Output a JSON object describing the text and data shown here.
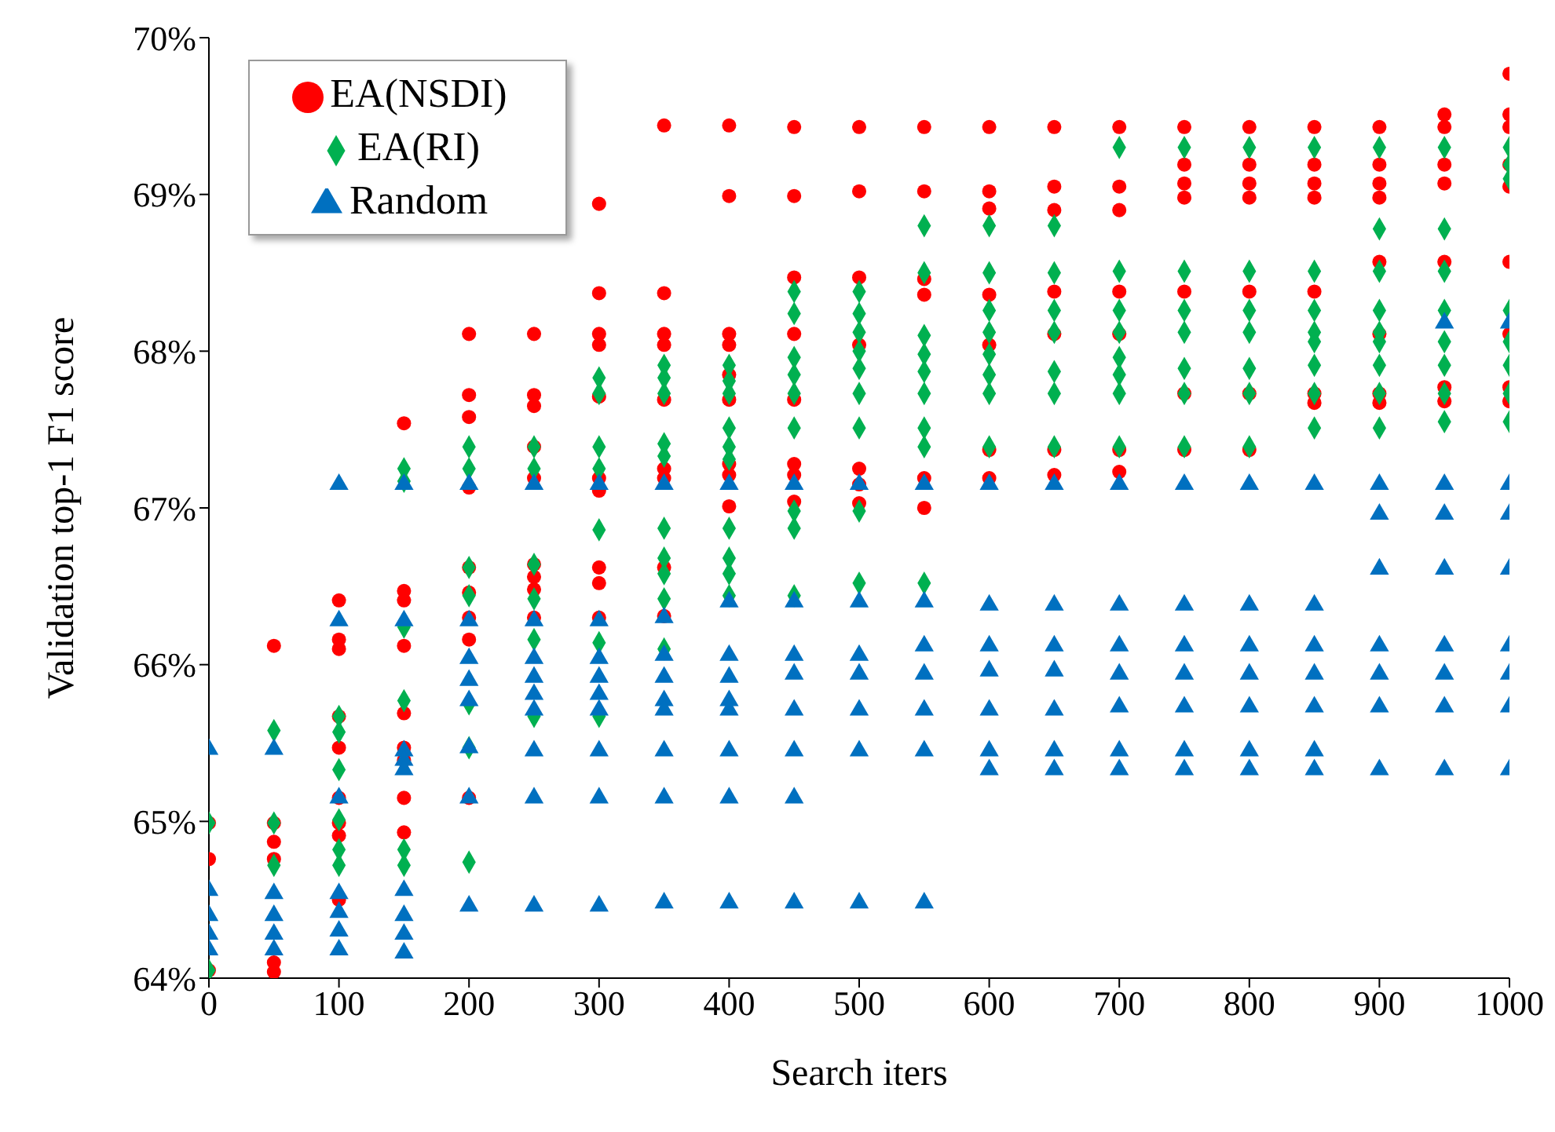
{
  "chart_data": {
    "type": "scatter",
    "xlabel": "Search iters",
    "ylabel": "Validation top-1 F1 score",
    "xlim": [
      0,
      1000
    ],
    "ylim": [
      64,
      70
    ],
    "xticks": [
      0,
      100,
      200,
      300,
      400,
      500,
      600,
      700,
      800,
      900,
      1000
    ],
    "yticks": [
      {
        "value": 64,
        "label": "64%"
      },
      {
        "value": 65,
        "label": "65%"
      },
      {
        "value": 66,
        "label": "66%"
      },
      {
        "value": 67,
        "label": "67%"
      },
      {
        "value": 68,
        "label": "68%"
      },
      {
        "value": 69,
        "label": "69%"
      },
      {
        "value": 70,
        "label": "70%"
      }
    ],
    "grid": false,
    "legend": "top left",
    "series": [
      {
        "name": "EA(NSDI)",
        "color": "#ff0000",
        "marker": "circle",
        "x": [
          0,
          0,
          0,
          50,
          50,
          50,
          50,
          50,
          50,
          100,
          100,
          100,
          100,
          100,
          100,
          100,
          100,
          100,
          150,
          150,
          150,
          150,
          150,
          150,
          150,
          150,
          150,
          200,
          200,
          200,
          200,
          200,
          200,
          200,
          200,
          200,
          250,
          250,
          250,
          250,
          250,
          250,
          250,
          250,
          250,
          300,
          300,
          300,
          300,
          300,
          300,
          300,
          300,
          300,
          300,
          350,
          350,
          350,
          350,
          350,
          350,
          350,
          350,
          350,
          400,
          400,
          400,
          400,
          400,
          400,
          400,
          400,
          400,
          450,
          450,
          450,
          450,
          450,
          450,
          450,
          450,
          500,
          500,
          500,
          500,
          500,
          500,
          500,
          550,
          550,
          550,
          550,
          550,
          550,
          600,
          600,
          600,
          600,
          600,
          600,
          600,
          650,
          650,
          650,
          650,
          650,
          650,
          650,
          700,
          700,
          700,
          700,
          700,
          700,
          700,
          750,
          750,
          750,
          750,
          750,
          750,
          750,
          800,
          800,
          800,
          800,
          800,
          800,
          800,
          850,
          850,
          850,
          850,
          850,
          850,
          850,
          900,
          900,
          900,
          900,
          900,
          900,
          900,
          900,
          950,
          950,
          950,
          950,
          950,
          950,
          950,
          1000,
          1000,
          1000,
          1000,
          1000,
          1000,
          1000,
          1000,
          1000
        ],
        "values": [
          64.99,
          64.76,
          64.05,
          66.12,
          64.99,
          64.87,
          64.76,
          64.1,
          64.04,
          66.41,
          66.16,
          66.1,
          65.67,
          65.47,
          65.15,
          64.99,
          64.91,
          64.5,
          67.54,
          66.47,
          66.41,
          66.12,
          65.69,
          65.47,
          65.39,
          65.15,
          64.93,
          68.11,
          67.72,
          67.58,
          67.13,
          66.62,
          66.46,
          66.3,
          66.16,
          65.15,
          68.11,
          67.72,
          67.65,
          67.39,
          67.19,
          66.64,
          66.56,
          66.48,
          66.3,
          68.94,
          68.37,
          68.11,
          68.04,
          67.71,
          67.19,
          67.11,
          66.62,
          66.52,
          66.3,
          69.44,
          68.37,
          68.11,
          68.04,
          67.69,
          67.25,
          67.19,
          66.62,
          66.31,
          69.44,
          68.99,
          68.11,
          68.04,
          67.85,
          67.69,
          67.28,
          67.21,
          67.01,
          69.43,
          68.99,
          68.47,
          68.11,
          67.69,
          67.28,
          67.21,
          67.04,
          69.43,
          69.02,
          68.47,
          68.04,
          67.25,
          67.15,
          67.03,
          69.43,
          69.02,
          68.46,
          68.36,
          67.19,
          67.0,
          69.43,
          69.02,
          68.91,
          68.36,
          68.04,
          67.37,
          67.19,
          69.43,
          69.05,
          68.9,
          68.38,
          68.11,
          67.37,
          67.21,
          69.43,
          69.05,
          68.9,
          68.38,
          68.11,
          67.37,
          67.23,
          69.43,
          69.19,
          69.07,
          68.98,
          68.38,
          67.73,
          67.37,
          69.43,
          69.19,
          69.07,
          68.98,
          68.38,
          67.73,
          67.37,
          69.43,
          69.19,
          69.07,
          68.98,
          68.38,
          67.73,
          67.67,
          69.43,
          69.19,
          69.07,
          68.98,
          68.57,
          68.11,
          67.73,
          67.67,
          69.51,
          69.43,
          69.19,
          69.07,
          68.57,
          67.77,
          67.68,
          69.77,
          69.51,
          69.43,
          69.19,
          69.05,
          68.57,
          68.11,
          67.77,
          67.68
        ]
      },
      {
        "name": "EA(RI)",
        "color": "#00b050",
        "marker": "diamond",
        "x": [
          0,
          0,
          50,
          50,
          50,
          100,
          100,
          100,
          100,
          100,
          100,
          150,
          150,
          150,
          150,
          150,
          150,
          200,
          200,
          200,
          200,
          200,
          200,
          200,
          250,
          250,
          250,
          250,
          250,
          250,
          300,
          300,
          300,
          300,
          300,
          300,
          300,
          350,
          350,
          350,
          350,
          350,
          350,
          350,
          350,
          350,
          350,
          400,
          400,
          400,
          400,
          400,
          400,
          400,
          400,
          400,
          400,
          450,
          450,
          450,
          450,
          450,
          450,
          450,
          450,
          450,
          500,
          500,
          500,
          500,
          500,
          500,
          500,
          500,
          500,
          550,
          550,
          550,
          550,
          550,
          550,
          550,
          550,
          550,
          600,
          600,
          600,
          600,
          600,
          600,
          600,
          600,
          650,
          650,
          650,
          650,
          650,
          650,
          650,
          700,
          700,
          700,
          700,
          700,
          700,
          700,
          700,
          750,
          750,
          750,
          750,
          750,
          750,
          750,
          800,
          800,
          800,
          800,
          800,
          800,
          800,
          850,
          850,
          850,
          850,
          850,
          850,
          850,
          850,
          900,
          900,
          900,
          900,
          900,
          900,
          900,
          900,
          900,
          950,
          950,
          950,
          950,
          950,
          950,
          950,
          950,
          1000,
          1000,
          1000,
          1000,
          1000,
          1000,
          1000,
          1000
        ],
        "values": [
          64.99,
          64.05,
          65.58,
          64.99,
          64.72,
          65.67,
          65.57,
          65.33,
          65.01,
          64.82,
          64.72,
          67.25,
          67.17,
          66.24,
          65.77,
          64.82,
          64.72,
          67.39,
          67.25,
          66.62,
          66.44,
          65.75,
          65.47,
          64.74,
          67.39,
          67.25,
          66.64,
          66.42,
          66.16,
          65.67,
          67.83,
          67.73,
          67.39,
          67.25,
          66.86,
          66.14,
          65.67,
          67.91,
          67.83,
          67.73,
          67.41,
          67.33,
          66.87,
          66.68,
          66.58,
          66.42,
          66.1,
          67.91,
          67.81,
          67.73,
          67.51,
          67.39,
          67.31,
          66.87,
          66.68,
          66.58,
          66.44,
          68.38,
          68.24,
          67.96,
          67.85,
          67.73,
          67.51,
          66.98,
          66.87,
          66.44,
          68.38,
          68.24,
          68.12,
          68.0,
          67.89,
          67.73,
          67.51,
          66.98,
          66.52,
          68.8,
          68.5,
          68.1,
          67.98,
          67.87,
          67.73,
          67.51,
          67.39,
          66.52,
          68.8,
          68.5,
          68.26,
          68.12,
          67.98,
          67.85,
          67.73,
          67.39,
          68.8,
          68.5,
          68.26,
          68.12,
          67.87,
          67.73,
          67.39,
          69.3,
          68.51,
          68.26,
          68.12,
          67.96,
          67.85,
          67.73,
          67.39,
          69.3,
          68.51,
          68.26,
          68.12,
          67.89,
          67.73,
          67.39,
          69.3,
          68.51,
          68.26,
          68.12,
          67.89,
          67.73,
          67.39,
          69.3,
          68.51,
          68.26,
          68.12,
          68.06,
          67.91,
          67.73,
          67.51,
          69.3,
          68.78,
          68.51,
          68.26,
          68.12,
          68.06,
          67.91,
          67.73,
          67.51,
          69.3,
          68.78,
          68.51,
          68.26,
          68.06,
          67.91,
          67.73,
          67.55,
          69.3,
          69.19,
          69.1,
          68.26,
          68.06,
          67.91,
          67.73,
          67.55
        ]
      },
      {
        "name": "Random",
        "color": "#0070c0",
        "marker": "triangle",
        "x": [
          0,
          0,
          0,
          0,
          0,
          50,
          50,
          50,
          50,
          50,
          100,
          100,
          100,
          100,
          100,
          100,
          100,
          150,
          150,
          150,
          150,
          150,
          150,
          150,
          150,
          150,
          200,
          200,
          200,
          200,
          200,
          200,
          200,
          200,
          250,
          250,
          250,
          250,
          250,
          250,
          250,
          250,
          250,
          300,
          300,
          300,
          300,
          300,
          300,
          300,
          300,
          300,
          350,
          350,
          350,
          350,
          350,
          350,
          350,
          350,
          350,
          400,
          400,
          400,
          400,
          400,
          400,
          400,
          400,
          400,
          450,
          450,
          450,
          450,
          450,
          450,
          450,
          450,
          500,
          500,
          500,
          500,
          500,
          500,
          500,
          550,
          550,
          550,
          550,
          550,
          550,
          550,
          600,
          600,
          600,
          600,
          600,
          600,
          600,
          650,
          650,
          650,
          650,
          650,
          650,
          650,
          700,
          700,
          700,
          700,
          700,
          700,
          700,
          750,
          750,
          750,
          750,
          750,
          750,
          750,
          800,
          800,
          800,
          800,
          800,
          800,
          800,
          850,
          850,
          850,
          850,
          850,
          850,
          850,
          900,
          900,
          900,
          900,
          900,
          900,
          900,
          950,
          950,
          950,
          950,
          950,
          950,
          950,
          950,
          1000,
          1000,
          1000,
          1000,
          1000,
          1000,
          1000,
          1000
        ],
        "values": [
          65.46,
          64.56,
          64.4,
          64.28,
          64.18,
          65.46,
          64.54,
          64.4,
          64.28,
          64.18,
          67.15,
          66.28,
          65.15,
          64.54,
          64.42,
          64.3,
          64.18,
          67.15,
          66.28,
          65.45,
          65.39,
          65.33,
          64.56,
          64.4,
          64.28,
          64.16,
          67.15,
          66.28,
          66.04,
          65.9,
          65.77,
          65.47,
          65.15,
          64.46,
          67.15,
          66.28,
          66.04,
          65.92,
          65.81,
          65.71,
          65.45,
          65.15,
          64.46,
          67.15,
          66.28,
          66.04,
          65.92,
          65.81,
          65.71,
          65.45,
          65.15,
          64.46,
          67.15,
          66.3,
          66.06,
          65.92,
          65.77,
          65.71,
          65.45,
          65.15,
          64.48,
          67.15,
          66.4,
          66.06,
          65.92,
          65.77,
          65.71,
          65.45,
          65.15,
          64.48,
          67.15,
          66.4,
          66.06,
          65.94,
          65.71,
          65.45,
          65.15,
          64.48,
          67.15,
          66.4,
          66.06,
          65.94,
          65.71,
          65.45,
          64.48,
          67.15,
          66.4,
          66.12,
          65.94,
          65.71,
          65.45,
          64.48,
          67.15,
          66.38,
          66.12,
          65.96,
          65.71,
          65.45,
          65.33,
          67.15,
          66.38,
          66.12,
          65.96,
          65.71,
          65.45,
          65.33,
          67.15,
          66.38,
          66.12,
          65.94,
          65.73,
          65.45,
          65.33,
          67.15,
          66.38,
          66.12,
          65.94,
          65.73,
          65.45,
          65.33,
          67.15,
          66.38,
          66.12,
          65.94,
          65.73,
          65.45,
          65.33,
          67.15,
          66.38,
          66.12,
          65.94,
          65.73,
          65.45,
          65.33,
          67.15,
          66.96,
          66.61,
          66.12,
          65.94,
          65.73,
          65.33,
          68.18,
          67.15,
          66.96,
          66.61,
          66.12,
          65.94,
          65.73,
          65.33,
          68.18,
          67.15,
          66.96,
          66.61,
          66.12,
          65.94,
          65.73,
          65.33
        ]
      }
    ]
  }
}
